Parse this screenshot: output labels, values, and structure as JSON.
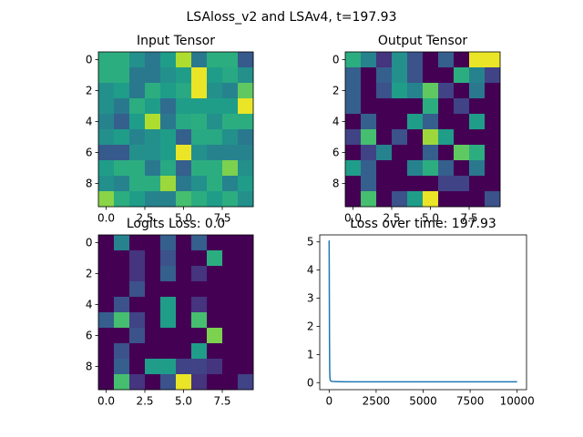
{
  "figure": {
    "suptitle": "LSAloss_v2 and LSAv4, t=197.93"
  },
  "chart_data": [
    {
      "type": "heatmap",
      "title": "Input Tensor",
      "colormap": "viridis",
      "value_range": [
        0,
        1
      ],
      "xticks": [
        "0.0",
        "2.5",
        "5.0",
        "7.5"
      ],
      "yticks": [
        "0",
        "2",
        "4",
        "6",
        "8"
      ],
      "grid": false,
      "matrix": [
        [
          0.62,
          0.62,
          0.5,
          0.4,
          0.55,
          0.88,
          0.4,
          0.62,
          0.62,
          0.28
        ],
        [
          0.62,
          0.62,
          0.4,
          0.4,
          0.5,
          0.55,
          0.97,
          0.55,
          0.6,
          0.5
        ],
        [
          0.5,
          0.55,
          0.4,
          0.62,
          0.55,
          0.6,
          0.97,
          0.5,
          0.45,
          0.75
        ],
        [
          0.5,
          0.4,
          0.62,
          0.55,
          0.35,
          0.55,
          0.55,
          0.55,
          0.55,
          0.97
        ],
        [
          0.45,
          0.3,
          0.55,
          0.88,
          0.4,
          0.6,
          0.62,
          0.5,
          0.62,
          0.62
        ],
        [
          0.5,
          0.55,
          0.45,
          0.5,
          0.55,
          0.3,
          0.6,
          0.6,
          0.5,
          0.4
        ],
        [
          0.28,
          0.28,
          0.5,
          0.5,
          0.55,
          0.97,
          0.5,
          0.45,
          0.45,
          0.45
        ],
        [
          0.55,
          0.62,
          0.62,
          0.4,
          0.6,
          0.3,
          0.62,
          0.62,
          0.8,
          0.5
        ],
        [
          0.5,
          0.45,
          0.62,
          0.62,
          0.85,
          0.4,
          0.5,
          0.62,
          0.45,
          0.55
        ],
        [
          0.82,
          0.62,
          0.55,
          0.45,
          0.45,
          0.7,
          0.62,
          0.55,
          0.62,
          0.5
        ]
      ]
    },
    {
      "type": "heatmap",
      "title": "Output Tensor",
      "colormap": "viridis",
      "value_range": [
        0,
        1
      ],
      "xticks": [
        "0.0",
        "2.5",
        "5.0",
        "7.5"
      ],
      "yticks": [
        "0",
        "2",
        "4",
        "6",
        "8"
      ],
      "grid": false,
      "matrix": [
        [
          0.62,
          0.45,
          0.15,
          0.5,
          0.25,
          0.0,
          0.3,
          0.0,
          0.97,
          0.97
        ],
        [
          0.3,
          0.0,
          0.3,
          0.5,
          0.25,
          0.0,
          0.0,
          0.62,
          0.45,
          0.2
        ],
        [
          0.3,
          0.0,
          0.25,
          0.55,
          0.45,
          0.75,
          0.2,
          0.0,
          0.4,
          0.0
        ],
        [
          0.3,
          0.0,
          0.0,
          0.0,
          0.0,
          0.62,
          0.0,
          0.2,
          0.0,
          0.0
        ],
        [
          0.0,
          0.3,
          0.0,
          0.0,
          0.55,
          0.3,
          0.0,
          0.0,
          0.55,
          0.0
        ],
        [
          0.2,
          0.7,
          0.0,
          0.25,
          0.0,
          0.85,
          0.55,
          0.0,
          0.0,
          0.0
        ],
        [
          0.0,
          0.2,
          0.45,
          0.0,
          0.0,
          0.3,
          0.0,
          0.75,
          0.62,
          0.0
        ],
        [
          0.55,
          0.3,
          0.0,
          0.0,
          0.45,
          0.62,
          0.3,
          0.0,
          0.4,
          0.0
        ],
        [
          0.0,
          0.3,
          0.0,
          0.0,
          0.0,
          0.0,
          0.2,
          0.2,
          0.0,
          0.0
        ],
        [
          0.0,
          0.7,
          0.0,
          0.25,
          0.55,
          0.97,
          0.0,
          0.0,
          0.0,
          0.25
        ]
      ]
    },
    {
      "type": "heatmap",
      "title": "Logits Loss: 0.0",
      "colormap": "viridis",
      "value_range": [
        0,
        1
      ],
      "xticks": [
        "0.0",
        "2.5",
        "5.0",
        "7.5"
      ],
      "yticks": [
        "0",
        "2",
        "4",
        "6",
        "8"
      ],
      "grid": false,
      "matrix": [
        [
          0.0,
          0.45,
          0.0,
          0.0,
          0.3,
          0.0,
          0.3,
          0.0,
          0.0,
          0.0
        ],
        [
          0.0,
          0.0,
          0.15,
          0.0,
          0.25,
          0.0,
          0.0,
          0.62,
          0.0,
          0.0
        ],
        [
          0.0,
          0.0,
          0.15,
          0.0,
          0.3,
          0.0,
          0.15,
          0.0,
          0.0,
          0.0
        ],
        [
          0.0,
          0.0,
          0.25,
          0.0,
          0.0,
          0.0,
          0.0,
          0.0,
          0.0,
          0.0
        ],
        [
          0.0,
          0.25,
          0.0,
          0.0,
          0.55,
          0.0,
          0.15,
          0.0,
          0.0,
          0.0
        ],
        [
          0.3,
          0.7,
          0.2,
          0.0,
          0.55,
          0.0,
          0.7,
          0.0,
          0.0,
          0.0
        ],
        [
          0.0,
          0.0,
          0.25,
          0.0,
          0.0,
          0.0,
          0.0,
          0.8,
          0.0,
          0.0
        ],
        [
          0.0,
          0.25,
          0.0,
          0.0,
          0.0,
          0.0,
          0.55,
          0.0,
          0.0,
          0.0
        ],
        [
          0.0,
          0.3,
          0.0,
          0.55,
          0.55,
          0.2,
          0.2,
          0.15,
          0.0,
          0.0
        ],
        [
          0.0,
          0.7,
          0.15,
          0.0,
          0.25,
          0.97,
          0.15,
          0.0,
          0.0,
          0.2
        ]
      ]
    },
    {
      "type": "line",
      "title": "Loss over time: 197.93",
      "xticks": [
        "0",
        "2500",
        "5000",
        "7500",
        "10000"
      ],
      "yticks": [
        "0",
        "1",
        "2",
        "3",
        "4",
        "5"
      ],
      "xlim": [
        -500,
        10500
      ],
      "ylim": [
        -0.25,
        5.25
      ],
      "grid": false,
      "series": [
        {
          "color": "#1f77b4",
          "x": [
            0,
            10,
            20,
            30,
            40,
            60,
            100,
            200,
            500,
            1000,
            2000,
            5000,
            7500,
            10000
          ],
          "y": [
            5.05,
            3.2,
            1.4,
            0.5,
            0.2,
            0.08,
            0.05,
            0.04,
            0.035,
            0.03,
            0.03,
            0.03,
            0.03,
            0.03
          ]
        }
      ]
    }
  ]
}
